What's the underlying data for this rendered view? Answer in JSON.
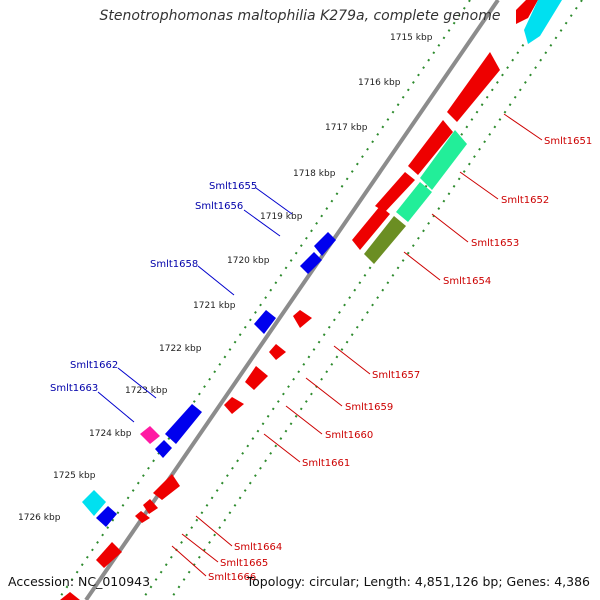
{
  "title": "Stenotrophomonas maltophilia K279a, complete genome",
  "footer": {
    "accession": "Accession: NC_010943",
    "topology": "Topology: circular; Length: 4,851,126 bp; Genes: 4,386"
  },
  "colors": {
    "backbone": "#8c8c8c",
    "tick_outer": "#2e8b2e",
    "label_plus": "#0000aa",
    "label_minus": "#cc0000",
    "gene_plus": "#0000ee",
    "gene_minus": "#ee0000",
    "gene_cyan": "#00e0f0",
    "gene_teal": "#22ee99",
    "gene_olive": "#6b8e23",
    "gene_magenta": "#ff1aa3"
  },
  "kbp_ticks": [
    "1715 kbp",
    "1716 kbp",
    "1717 kbp",
    "1718 kbp",
    "1719 kbp",
    "1720 kbp",
    "1721 kbp",
    "1722 kbp",
    "1723 kbp",
    "1724 kbp",
    "1725 kbp",
    "1726 kbp"
  ],
  "gene_labels": {
    "plus": [
      "Smlt1655",
      "Smlt1656",
      "Smlt1658",
      "Smlt1662",
      "Smlt1663"
    ],
    "minus": [
      "Smlt1651",
      "Smlt1652",
      "Smlt1653",
      "Smlt1654",
      "Smlt1657",
      "Smlt1659",
      "Smlt1660",
      "Smlt1661",
      "Smlt1664",
      "Smlt1665",
      "Smlt1666"
    ]
  }
}
